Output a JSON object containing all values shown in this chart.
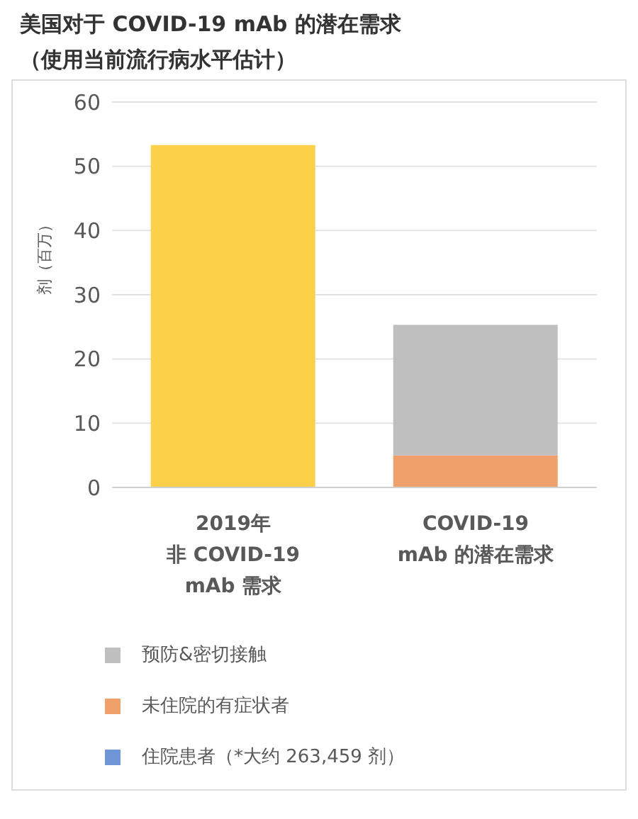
{
  "chart_data": {
    "type": "bar",
    "title": "美国对于 COVID-19 mAb 的潜在需求",
    "subtitle": "（使用当前流行病水平估计）",
    "ylabel": "剂（百万）",
    "categories": [
      "2019年非 COVID-19 mAb 需求",
      "COVID-19 mAb 的潜在需求"
    ],
    "stacked": true,
    "series": [
      {
        "color": "#fdd04a",
        "values": [
          53.3,
          null
        ]
      },
      {
        "name": "住院患者（*大约 263,459 剂）",
        "color": "#6f96d6",
        "values": [
          null,
          null
        ]
      },
      {
        "name": "未住院的有症状者",
        "color": "#f0a06a",
        "values": [
          null,
          5
        ]
      },
      {
        "name": "预防&密切接触",
        "color": "#bfbfbf",
        "values": [
          null,
          20.3
        ]
      }
    ],
    "ylim": [
      0,
      60
    ],
    "yticks": [
      0,
      10,
      20,
      30,
      40,
      50,
      60
    ],
    "grid": "y",
    "legend": "bottom"
  }
}
